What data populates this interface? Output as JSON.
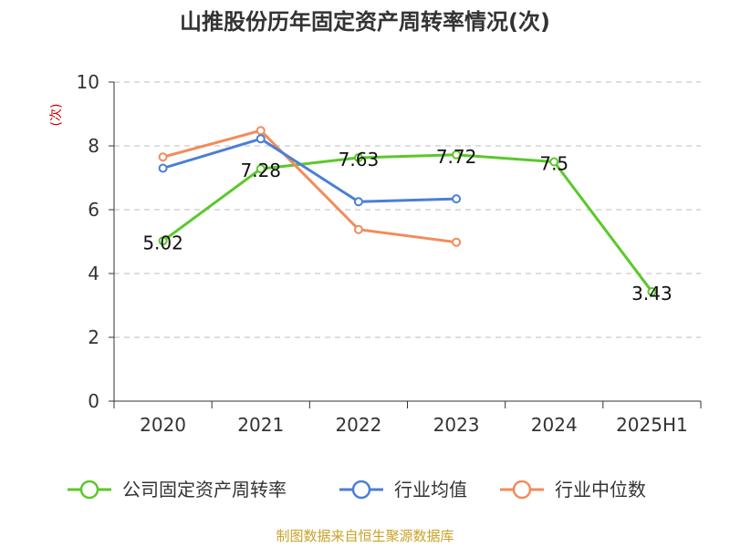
{
  "chart_data": {
    "type": "line",
    "title": "山推股份历年固定资产周转率情况(次)",
    "ylabel": "(次)",
    "categories": [
      "2020",
      "2021",
      "2022",
      "2023",
      "2024",
      "2025H1"
    ],
    "ylim": [
      0,
      10
    ],
    "yticks": [
      0,
      2,
      4,
      6,
      8,
      10
    ],
    "grid": true,
    "legend_position": "bottom",
    "series": [
      {
        "name": "公司固定资产周转率",
        "color": "#5cc82a",
        "values": [
          5.02,
          7.28,
          7.63,
          7.72,
          7.5,
          3.43
        ],
        "labels": [
          "5.02",
          "7.28",
          "7.63",
          "7.72",
          "7.5",
          "3.43"
        ]
      },
      {
        "name": "行业均值",
        "color": "#4a7fd6",
        "values": [
          7.3,
          8.22,
          6.25,
          6.34,
          null,
          null
        ]
      },
      {
        "name": "行业中位数",
        "color": "#f28c5a",
        "values": [
          7.65,
          8.48,
          5.38,
          4.98,
          null,
          null
        ]
      }
    ]
  },
  "source": "制图数据来自恒生聚源数据库"
}
